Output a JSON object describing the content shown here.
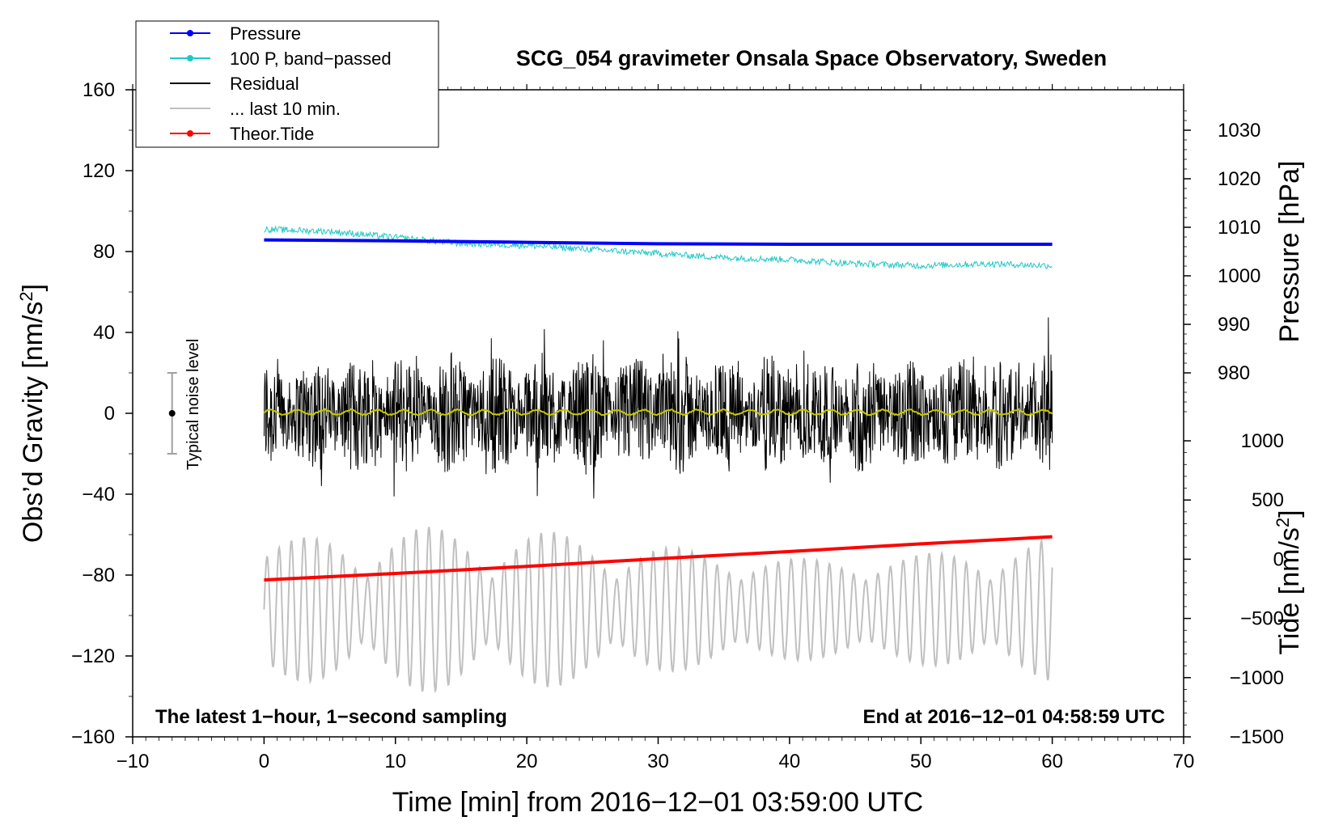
{
  "chart_data": {
    "type": "line",
    "title": "SCG_054 gravimeter Onsala Space Observatory, Sweden",
    "xlabel": "Time [min] from 2016−12−01 03:59:00 UTC",
    "ylabel": "Obs’d Gravity [nm/s²]",
    "ylabel_main": "Obs’d Gravity [nm/s",
    "ylabel_sup": "2",
    "ylabel_end": "]",
    "y2label_pressure": "Pressure [hPa]",
    "y2label_tide_main": "Tide [nm/s",
    "y2label_tide_sup": "2",
    "y2label_tide_end": "]",
    "xlim": [
      -10,
      70
    ],
    "ylim": [
      -160,
      160
    ],
    "xticks": [
      -10,
      0,
      10,
      20,
      30,
      40,
      50,
      60,
      70
    ],
    "xtick_labels": [
      "−10",
      "0",
      "10",
      "20",
      "30",
      "40",
      "50",
      "60",
      "70"
    ],
    "yticks": [
      -160,
      -120,
      -80,
      -40,
      0,
      40,
      80,
      120,
      160
    ],
    "ytick_labels": [
      "−160",
      "−120",
      "−80",
      "−40",
      "0",
      "40",
      "80",
      "120",
      "160"
    ],
    "pressure_axis": {
      "range_hPa": [
        970,
        1030
      ],
      "ticks": [
        980,
        990,
        1000,
        1010,
        1020,
        1030
      ],
      "tick_labels": [
        "980",
        "990",
        "1000",
        "1010",
        "1020",
        "1030"
      ],
      "maps_to_gravity": [
        -4,
        140
      ]
    },
    "tide_axis": {
      "range": [
        -1500,
        1000
      ],
      "ticks": [
        -1500,
        -1000,
        -500,
        0,
        500,
        1000
      ],
      "tick_labels": [
        "−1500",
        "−1000",
        "−500",
        "0",
        "500",
        "1000"
      ],
      "maps_to_gravity": [
        -160,
        -13.6
      ]
    },
    "legend": {
      "position": "top-left",
      "entries": [
        {
          "label": "Pressure",
          "color": "#0000ff",
          "marker": true
        },
        {
          "label": "100 P, band−passed",
          "color": "#20c8c8",
          "marker": true
        },
        {
          "label": "Residual",
          "color": "#000000",
          "marker": false
        },
        {
          "label": "... last 10 min.",
          "color": "#c0c0c0",
          "marker": false
        },
        {
          "label": "Theor.Tide",
          "color": "#ff0000",
          "marker": true
        }
      ]
    },
    "series": [
      {
        "name": "Pressure",
        "color": "#0000ff",
        "unit": "hPa",
        "x": [
          0,
          10,
          20,
          30,
          40,
          50,
          60
        ],
        "values": [
          1007.4,
          1007.2,
          1006.9,
          1006.6,
          1006.5,
          1006.5,
          1006.5
        ]
      },
      {
        "name": "100 P, band−passed",
        "color": "#20c8c8",
        "unit": "nm/s²",
        "x": [
          0,
          5,
          10,
          15,
          20,
          25,
          30,
          35,
          40,
          45,
          50,
          55,
          60
        ],
        "values": [
          91,
          90,
          87,
          84,
          83,
          81,
          79,
          77,
          76,
          74,
          73,
          74,
          73
        ]
      },
      {
        "name": "Residual",
        "color": "#000000",
        "unit": "nm/s²",
        "x": [
          0,
          60
        ],
        "values": [
          0,
          0
        ],
        "spread": [
          -50,
          52
        ]
      },
      {
        "name": "Residual (smoothed)",
        "color": "#c8c800",
        "unit": "nm/s²",
        "x": [
          0,
          60
        ],
        "values": [
          0.5,
          0.5
        ]
      },
      {
        "name": "Theor.Tide",
        "color": "#ff0000",
        "unit": "nm/s²",
        "x": [
          0,
          10,
          20,
          30,
          40,
          50,
          60
        ],
        "values": [
          -175,
          -120,
          -60,
          5,
          65,
          130,
          190
        ]
      },
      {
        "name": "... last 10 min.",
        "color": "#c0c0c0",
        "unit": "nm/s²",
        "x": [
          0,
          60
        ],
        "values": [
          -100,
          -100
        ],
        "spread": [
          -138,
          -56
        ]
      }
    ],
    "noise_level": {
      "x": -7,
      "center": 0,
      "low": -20,
      "high": 20,
      "label": "Typical noise level"
    },
    "annotations": {
      "bottom_left": "The latest 1−hour, 1−second sampling",
      "bottom_right": "End at 2016−12−01 04:58:59 UTC"
    }
  }
}
